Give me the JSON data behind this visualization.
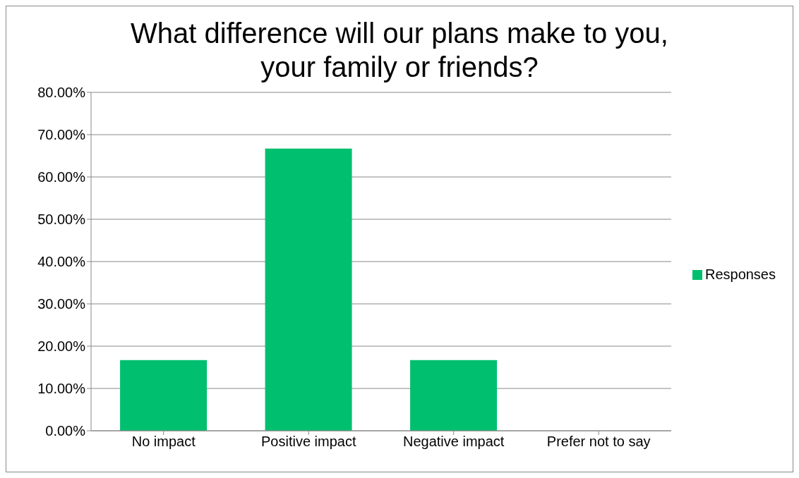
{
  "chart_data": {
    "type": "bar",
    "title": "What difference will our plans make to you, your family or friends?",
    "categories": [
      "No impact",
      "Positive impact",
      "Negative impact",
      "Prefer not to say"
    ],
    "series": [
      {
        "name": "Responses",
        "color": "#00bf6f",
        "values": [
          16.7,
          66.7,
          16.7,
          0
        ]
      }
    ],
    "ylim": [
      0,
      80
    ],
    "yticks": [
      {
        "value": 0,
        "label": "0.00%"
      },
      {
        "value": 10,
        "label": "10.00%"
      },
      {
        "value": 20,
        "label": "20.00%"
      },
      {
        "value": 30,
        "label": "30.00%"
      },
      {
        "value": 40,
        "label": "40.00%"
      },
      {
        "value": 50,
        "label": "50.00%"
      },
      {
        "value": 60,
        "label": "60.00%"
      },
      {
        "value": 70,
        "label": "70.00%"
      },
      {
        "value": 80,
        "label": "80.00%"
      }
    ],
    "grid": "y",
    "legend": "right"
  }
}
